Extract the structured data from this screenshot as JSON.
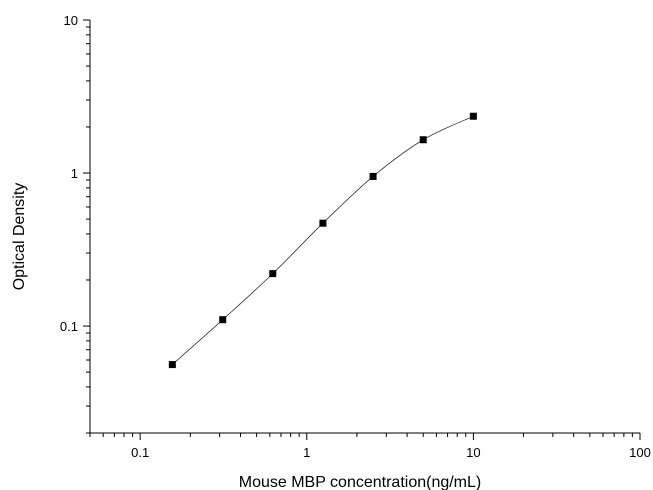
{
  "chart_data": {
    "type": "scatter",
    "title": "",
    "xlabel": "Mouse MBP concentration(ng/mL)",
    "ylabel": "Optical Density",
    "xscale": "log",
    "yscale": "log",
    "xlim": [
      0.05,
      100
    ],
    "ylim": [
      0.02,
      10
    ],
    "xticks": [
      0.1,
      1,
      10,
      100
    ],
    "xtick_labels": [
      "0.1",
      "1",
      "10",
      "100"
    ],
    "yticks": [
      0.1,
      1,
      10
    ],
    "ytick_labels": [
      "0.1",
      "1",
      "10"
    ],
    "grid": false,
    "legend": "none",
    "marker": "square",
    "fit_curve": true,
    "series": [
      {
        "x": [
          0.156,
          0.313,
          0.625,
          1.25,
          2.5,
          5,
          10
        ],
        "y": [
          0.056,
          0.11,
          0.22,
          0.47,
          0.95,
          1.65,
          2.35
        ]
      }
    ]
  }
}
